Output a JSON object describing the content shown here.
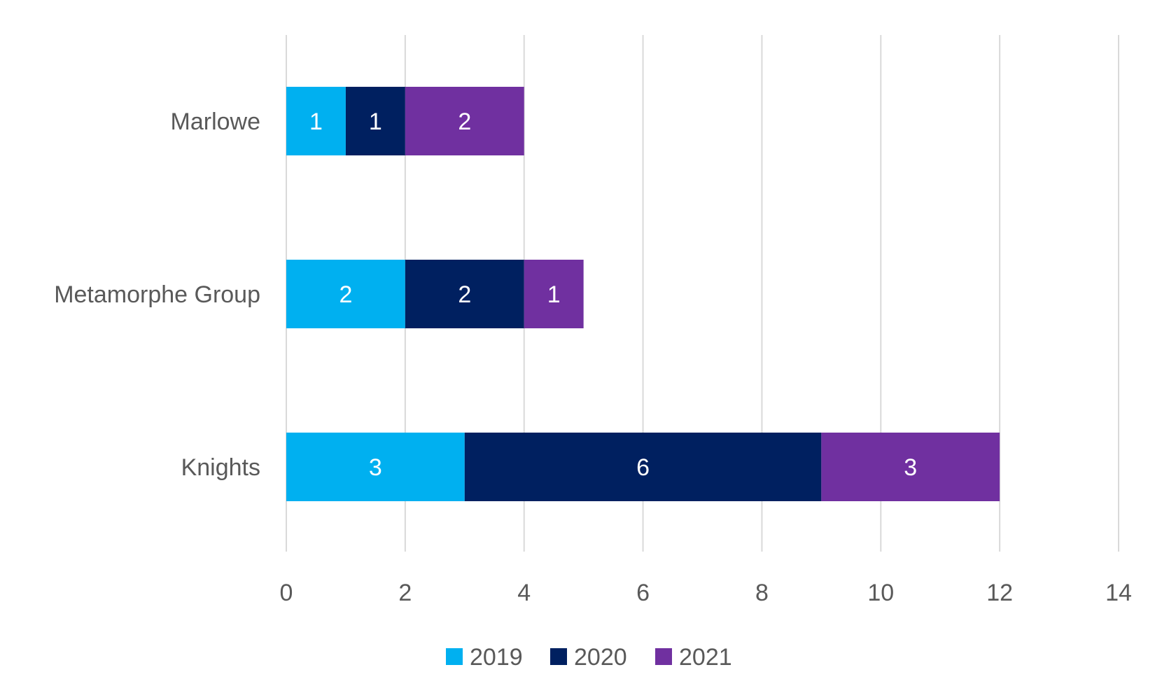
{
  "chart_data": {
    "type": "bar",
    "orientation": "horizontal",
    "stacked": true,
    "title": "",
    "xlabel": "",
    "ylabel": "",
    "categories": [
      "Marlowe",
      "Metamorphe Group",
      "Knights"
    ],
    "series": [
      {
        "name": "2019",
        "color": "#00B0F0",
        "values": [
          1,
          2,
          3
        ]
      },
      {
        "name": "2020",
        "color": "#002060",
        "values": [
          1,
          2,
          6
        ]
      },
      {
        "name": "2021",
        "color": "#7030A0",
        "values": [
          2,
          1,
          3
        ]
      }
    ],
    "xlim": [
      0,
      14
    ],
    "xticks": [
      "0",
      "2",
      "4",
      "6",
      "8",
      "10",
      "12",
      "14"
    ],
    "data_labels": true,
    "grid": "vertical",
    "legend": "bottom"
  }
}
